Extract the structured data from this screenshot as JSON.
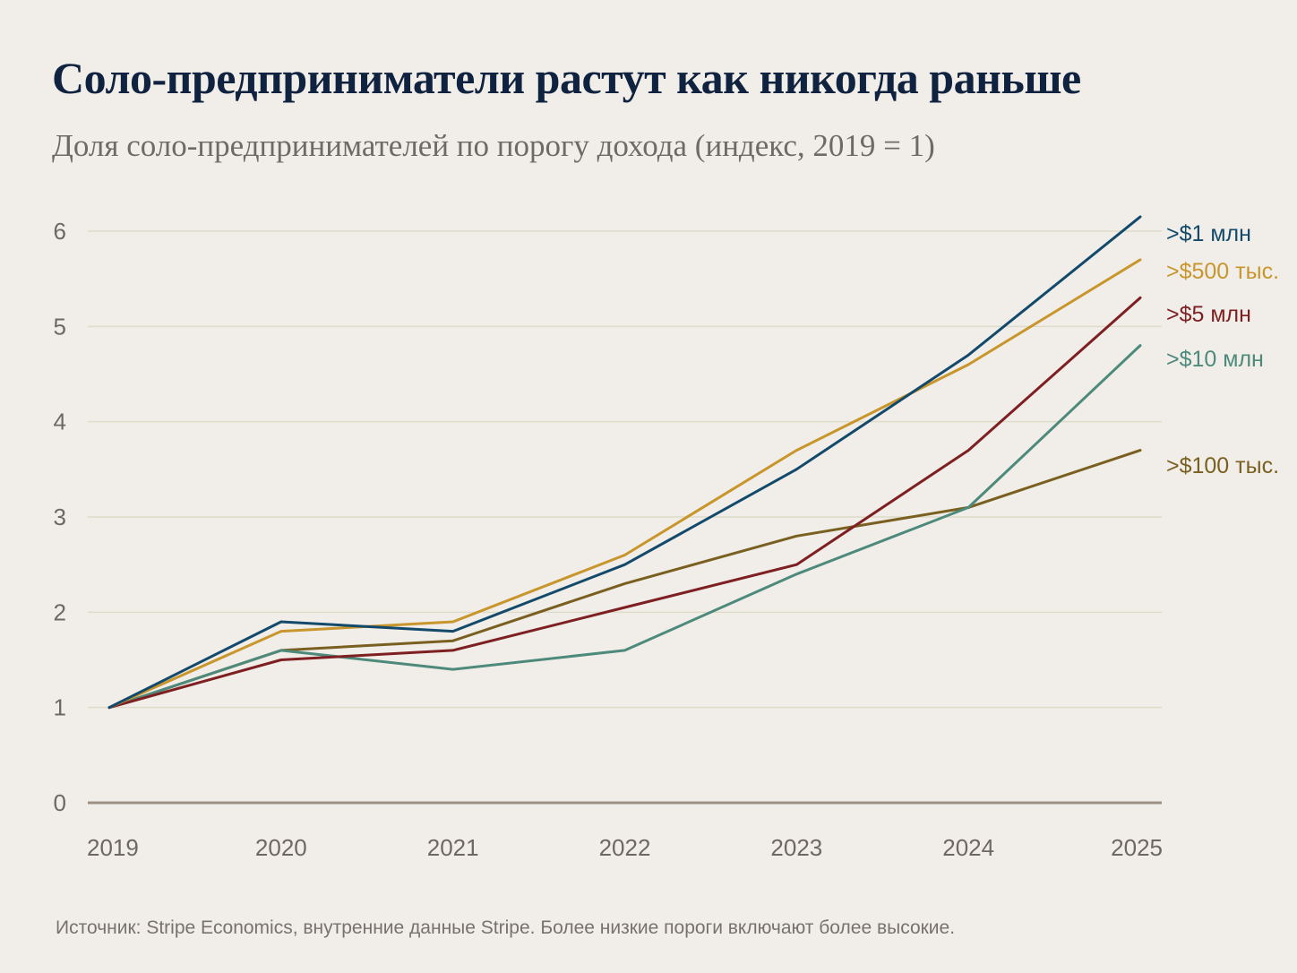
{
  "title": "Соло-предприниматели растут как никогда раньше",
  "subtitle": "Доля соло-предпринимателей по порогу дохода (индекс, 2019 = 1)",
  "source": "Источник: Stripe Economics, внутренние данные Stripe. Более низкие пороги включают более высокие.",
  "chart_data": {
    "type": "line",
    "x": [
      "2019",
      "2020",
      "2021",
      "2022",
      "2023",
      "2024",
      "2025"
    ],
    "ylim": [
      0,
      6
    ],
    "yticks": [
      0,
      1,
      2,
      3,
      4,
      5,
      6
    ],
    "grid": true,
    "series": [
      {
        "name": ">$1 млн",
        "color": "#134a6b",
        "values": [
          1.0,
          1.9,
          1.8,
          2.5,
          3.5,
          4.7,
          6.15
        ]
      },
      {
        "name": ">$500 тыс.",
        "color": "#c8962c",
        "values": [
          1.0,
          1.8,
          1.9,
          2.6,
          3.7,
          4.6,
          5.7
        ]
      },
      {
        "name": ">$5 млн",
        "color": "#7e1f22",
        "values": [
          1.0,
          1.5,
          1.6,
          2.05,
          2.5,
          3.7,
          5.3
        ]
      },
      {
        "name": ">$10 млн",
        "color": "#4d8a7c",
        "values": [
          1.0,
          1.6,
          1.4,
          1.6,
          2.4,
          3.1,
          4.8
        ]
      },
      {
        "name": ">$100 тыс.",
        "color": "#7a6020",
        "values": [
          1.0,
          1.6,
          1.7,
          2.3,
          2.8,
          3.1,
          3.7
        ]
      }
    ]
  }
}
